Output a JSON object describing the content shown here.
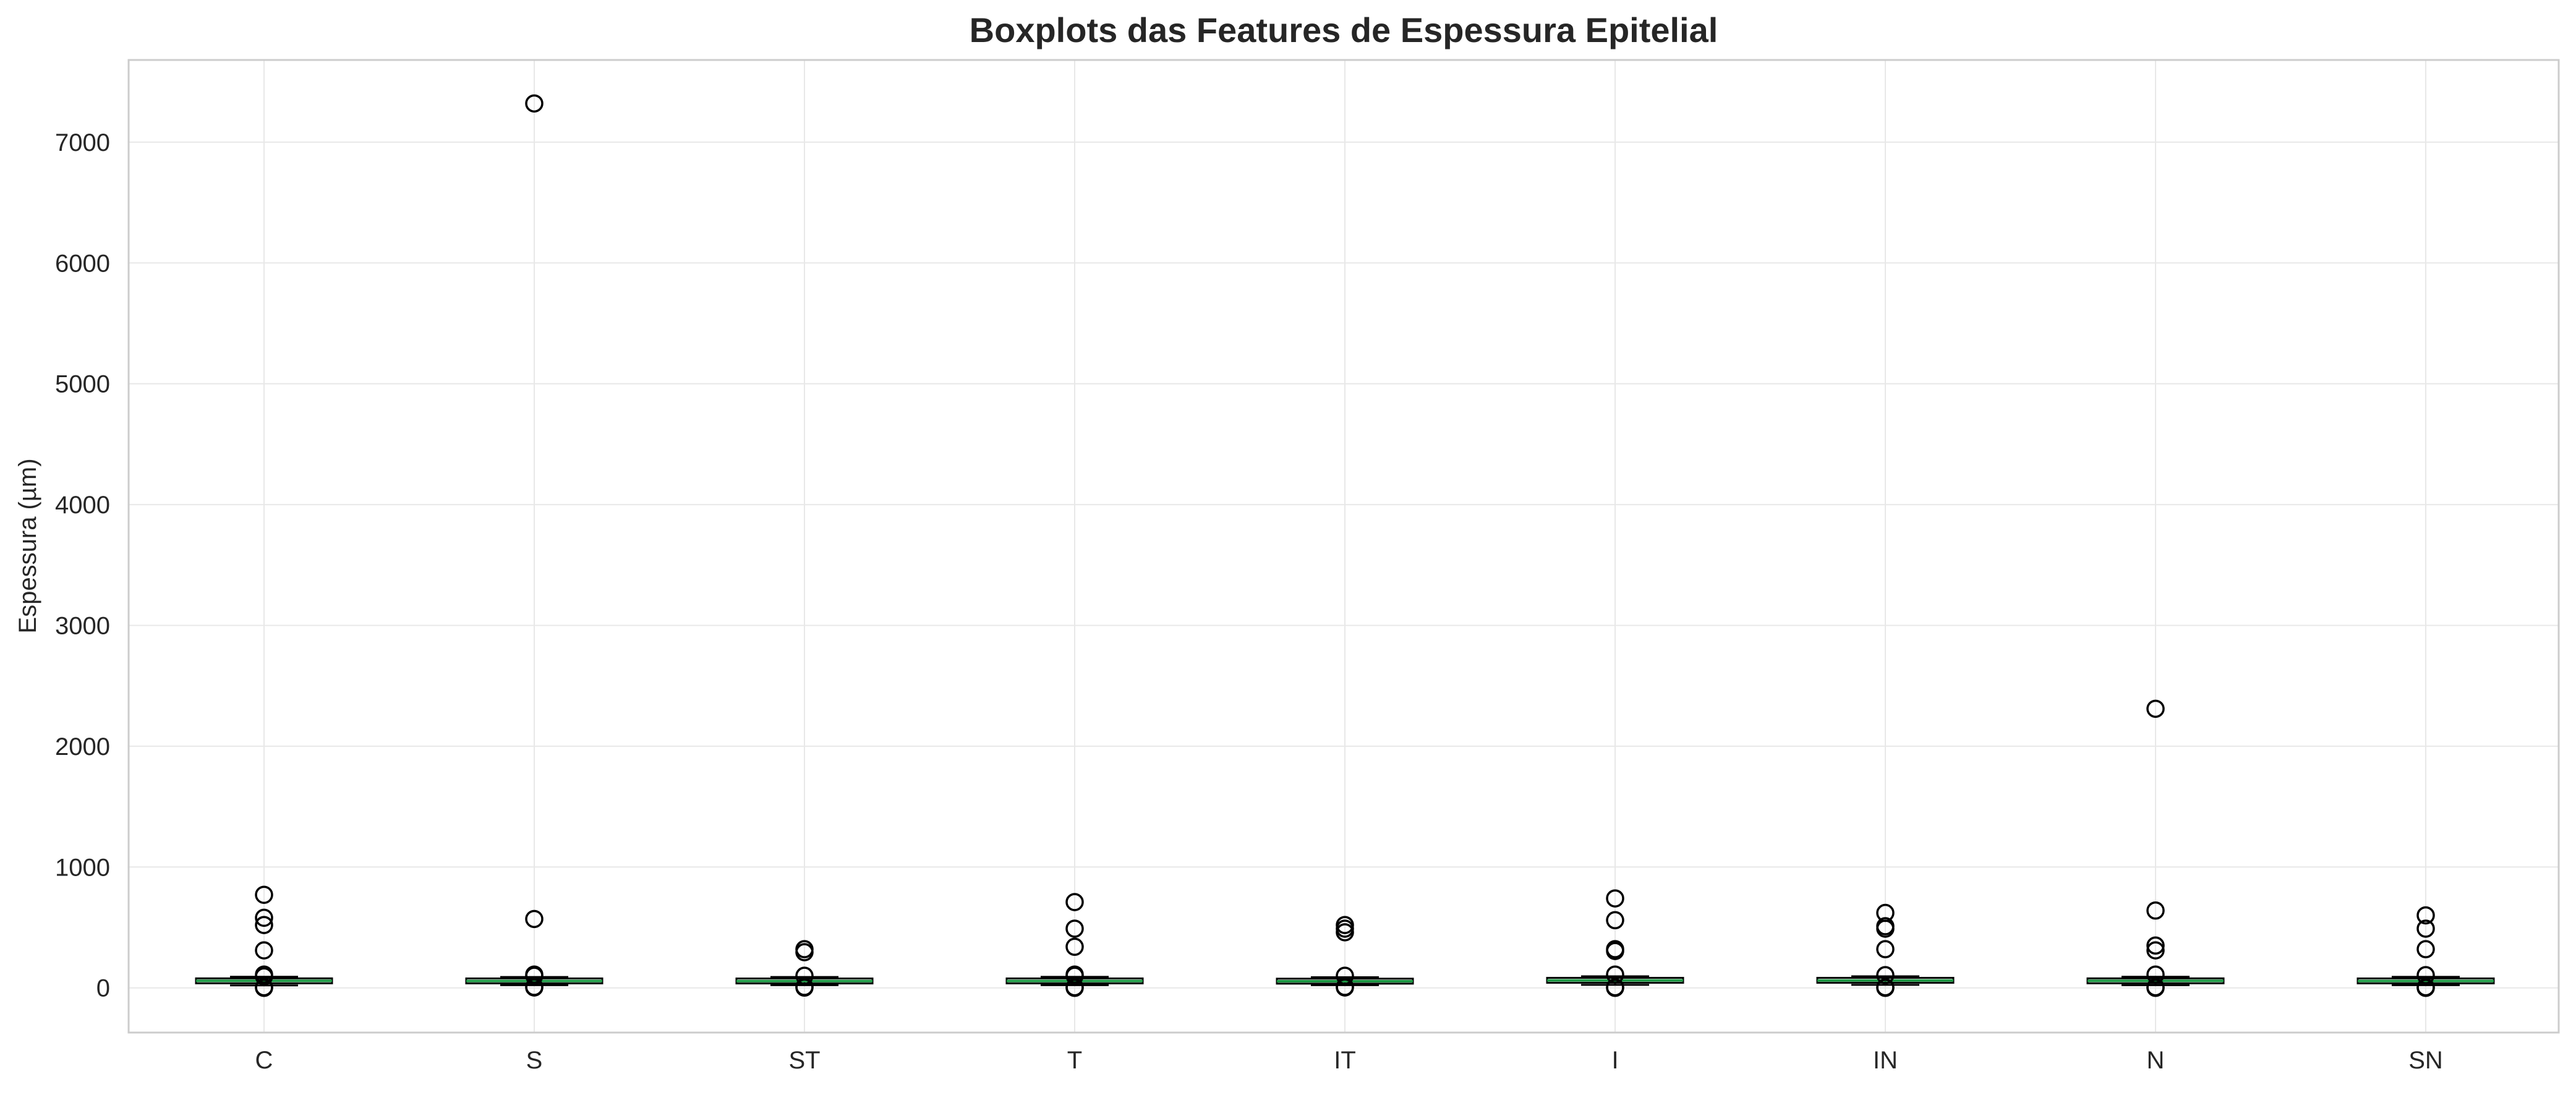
{
  "chart_data": {
    "type": "box",
    "title": "Boxplots das Features de Espessura Epitelial",
    "xlabel": "",
    "ylabel": "Espessura (µm)",
    "ylim": [
      -370,
      7680
    ],
    "yticks": [
      0,
      1000,
      2000,
      3000,
      4000,
      5000,
      6000,
      7000
    ],
    "grid": true,
    "categories": [
      "C",
      "S",
      "ST",
      "T",
      "IT",
      "I",
      "IN",
      "N",
      "SN"
    ],
    "series": [
      {
        "boxes": [
          {
            "label": "C",
            "whislo": 20,
            "q1": 50,
            "med": 58,
            "q3": 66,
            "whishi": 92,
            "fliers": [
              770,
              580,
              520,
              310,
              110,
              95,
              5,
              0
            ]
          },
          {
            "label": "S",
            "whislo": 22,
            "q1": 50,
            "med": 57,
            "q3": 65,
            "whishi": 90,
            "fliers": [
              7320,
              570,
              110,
              100,
              8,
              3
            ]
          },
          {
            "label": "ST",
            "whislo": 22,
            "q1": 50,
            "med": 56,
            "q3": 64,
            "whishi": 90,
            "fliers": [
              320,
              295,
              100,
              8,
              2
            ]
          },
          {
            "label": "T",
            "whislo": 22,
            "q1": 50,
            "med": 57,
            "q3": 65,
            "whishi": 91,
            "fliers": [
              710,
              490,
              340,
              110,
              100,
              5,
              0
            ]
          },
          {
            "label": "IT",
            "whislo": 22,
            "q1": 48,
            "med": 55,
            "q3": 63,
            "whishi": 88,
            "fliers": [
              520,
              490,
              460,
              100,
              8,
              3
            ]
          },
          {
            "label": "I",
            "whislo": 25,
            "q1": 55,
            "med": 62,
            "q3": 70,
            "whishi": 96,
            "fliers": [
              740,
              560,
              320,
              305,
              110,
              5,
              0
            ]
          },
          {
            "label": "IN",
            "whislo": 25,
            "q1": 55,
            "med": 61,
            "q3": 70,
            "whishi": 96,
            "fliers": [
              620,
              510,
              490,
              320,
              105,
              5,
              0
            ]
          },
          {
            "label": "N",
            "whislo": 22,
            "q1": 50,
            "med": 58,
            "q3": 66,
            "whishi": 92,
            "fliers": [
              2310,
              640,
              350,
              310,
              110,
              5,
              0
            ]
          },
          {
            "label": "SN",
            "whislo": 22,
            "q1": 50,
            "med": 57,
            "q3": 65,
            "whishi": 91,
            "fliers": [
              600,
              490,
              320,
              105,
              5,
              0
            ]
          }
        ]
      }
    ],
    "colors": {
      "box": "#000000",
      "median": "#1a9641",
      "whisker": "#000000",
      "flier": "#000000",
      "grid": "#e8e8e8",
      "frame": "#cccccc",
      "text": "#262626",
      "background": "#ffffff"
    }
  }
}
